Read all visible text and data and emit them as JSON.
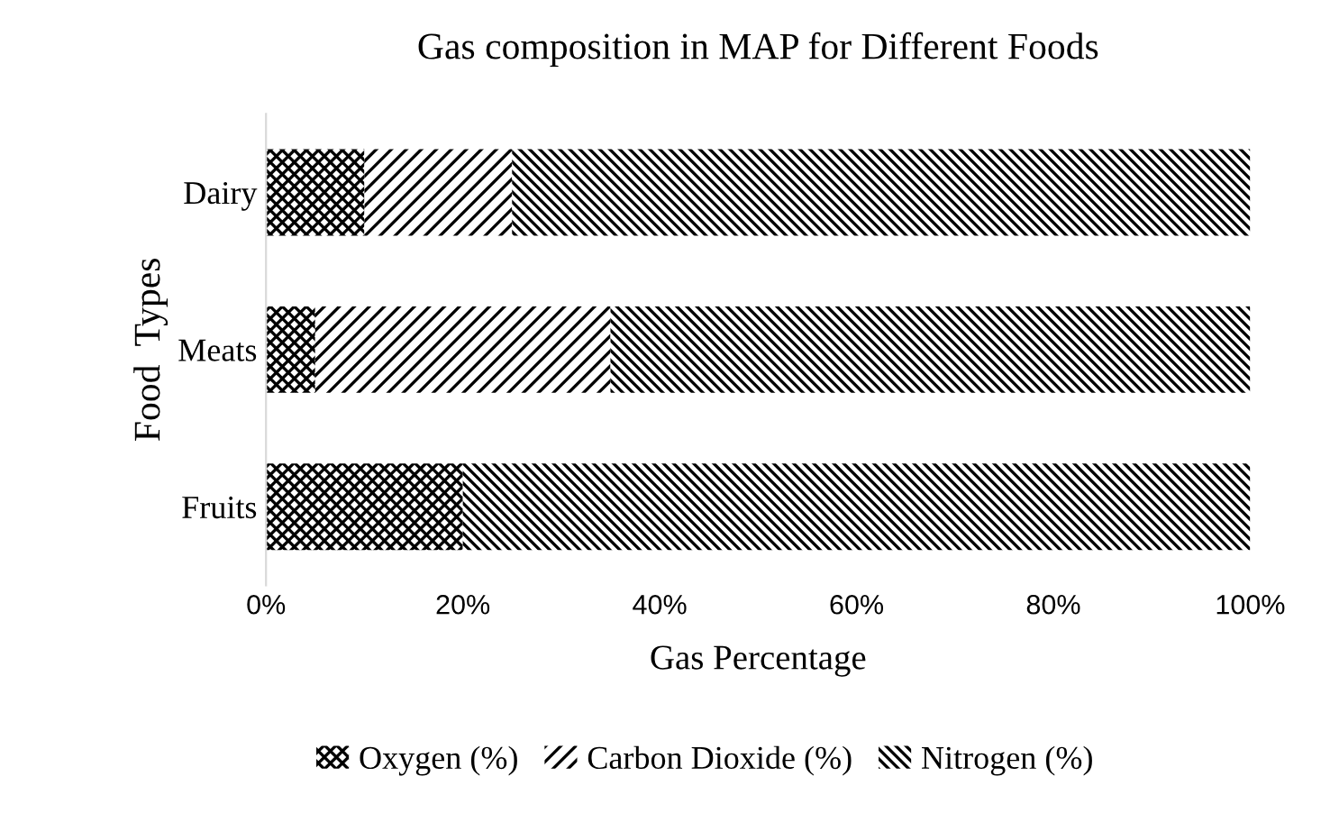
{
  "chart_data": {
    "type": "bar",
    "orientation": "horizontal",
    "stacked": true,
    "title": "Gas composition in MAP for Different Foods",
    "xlabel": "Gas Percentage",
    "ylabel": "Food  Types",
    "categories": [
      "Dairy",
      "Meats",
      "Fruits"
    ],
    "series": [
      {
        "name": "Oxygen (%)",
        "color": "#000000",
        "values": [
          10,
          5,
          20
        ]
      },
      {
        "name": "Carbon Dioxide (%)",
        "color": "#000000",
        "values": [
          15,
          30,
          0
        ]
      },
      {
        "name": "Nitrogen (%)",
        "color": "#000000",
        "values": [
          75,
          65,
          80
        ]
      }
    ],
    "xlim": [
      0,
      100
    ],
    "xticks": [
      {
        "value": 0,
        "label": "0%"
      },
      {
        "value": 20,
        "label": "20%"
      },
      {
        "value": 40,
        "label": "40%"
      },
      {
        "value": 60,
        "label": "60%"
      },
      {
        "value": 80,
        "label": "80%"
      },
      {
        "value": 100,
        "label": "100%"
      }
    ],
    "grid": false,
    "legend": "bottom"
  }
}
